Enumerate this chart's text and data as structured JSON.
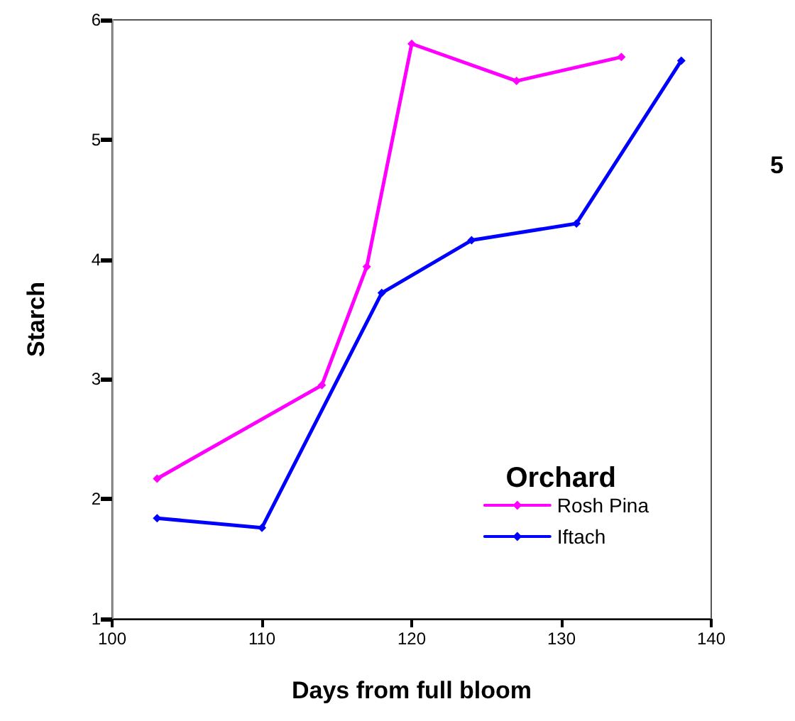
{
  "chart_data": {
    "type": "line",
    "xlabel": "Days from full bloom",
    "ylabel": "Starch",
    "legend_title": "Orchard",
    "series": [
      {
        "name": "Rosh Pina",
        "color": "#ff00ff",
        "x": [
          103,
          114,
          117,
          120,
          127,
          134
        ],
        "values": [
          2.17,
          2.95,
          3.94,
          5.8,
          5.49,
          5.69
        ]
      },
      {
        "name": "Iftach",
        "color": "#0000ff",
        "x": [
          103,
          110,
          118,
          124,
          131,
          138
        ],
        "values": [
          1.84,
          1.76,
          3.72,
          4.16,
          4.3,
          5.66
        ]
      }
    ],
    "xlim": [
      100,
      140
    ],
    "xticks": [
      100,
      110,
      120,
      130,
      140
    ],
    "ylim": [
      1,
      6
    ],
    "yticks": [
      1,
      2,
      3,
      4,
      5,
      6
    ],
    "grid": false,
    "legend": "bottom right",
    "marker": "diamond",
    "line_style": "solid",
    "annotations": [
      "5"
    ]
  }
}
